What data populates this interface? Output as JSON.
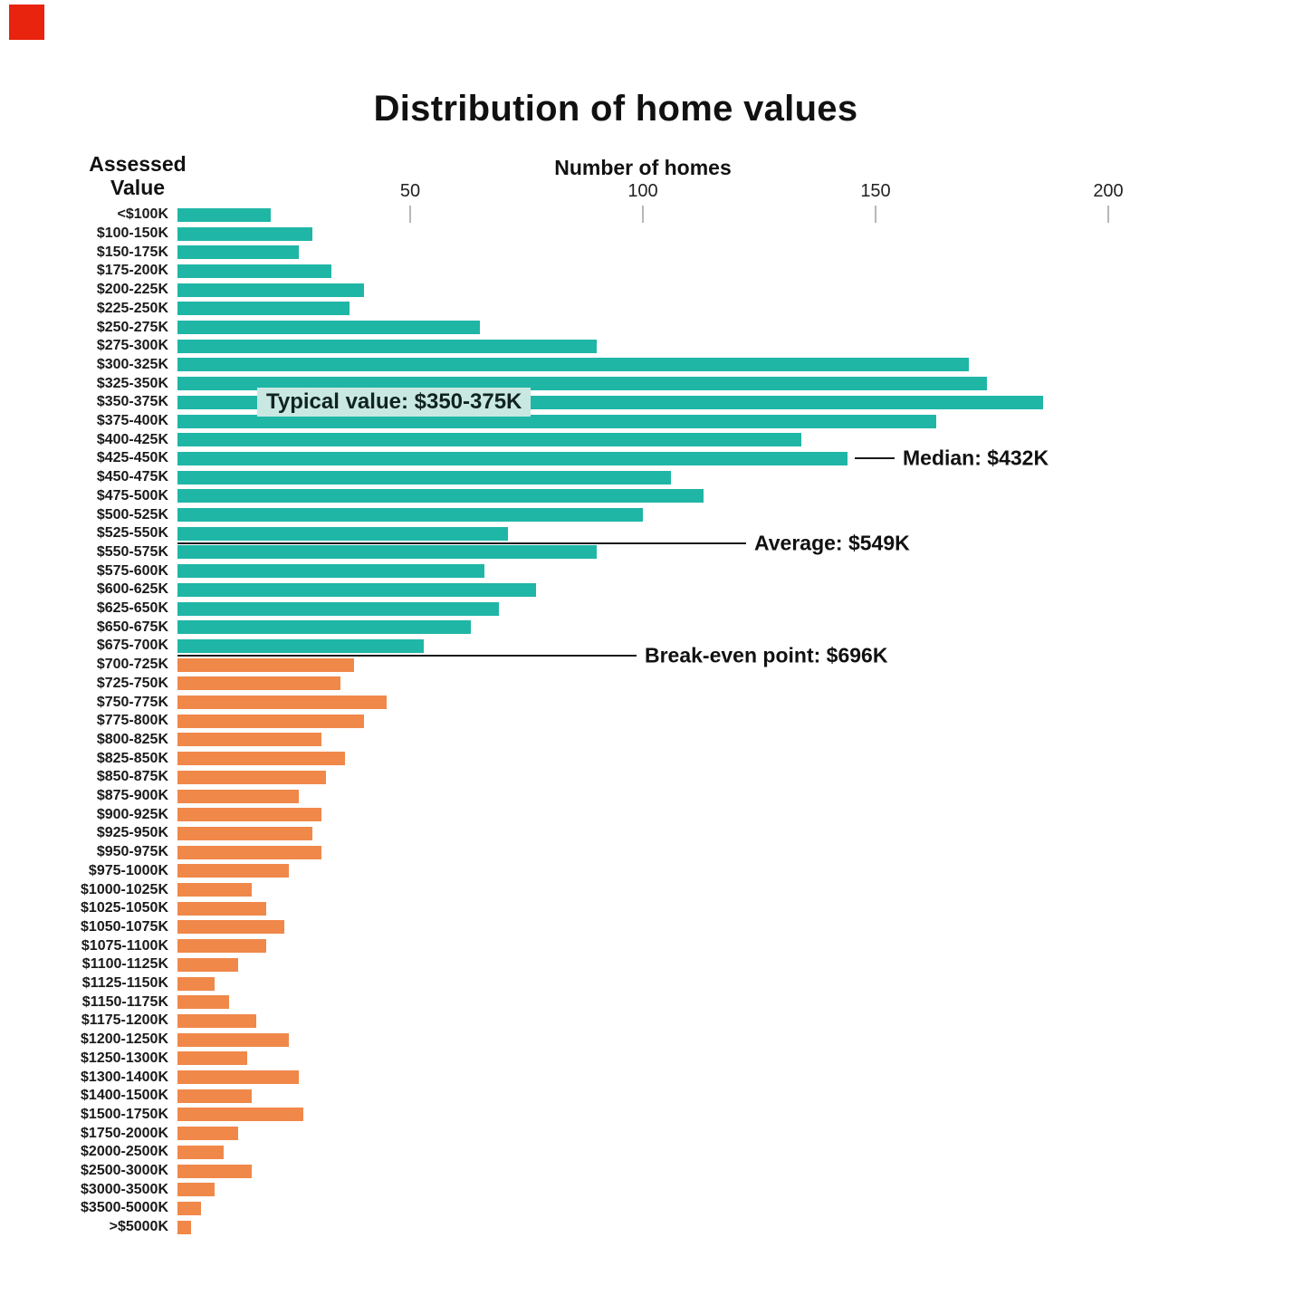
{
  "decorations": {
    "corner_square_color": "#e8230e"
  },
  "chart_data": {
    "type": "bar",
    "orientation": "horizontal",
    "title": "Distribution of home values",
    "xlabel": "Number of homes",
    "ylabel": "Assessed Value",
    "ylabel_lines": [
      "Assessed",
      "Value"
    ],
    "xlim": [
      0,
      200
    ],
    "x_ticks": [
      50,
      100,
      150,
      200
    ],
    "grid": false,
    "legend": null,
    "categories": [
      "<$100K",
      "$100-150K",
      "$150-175K",
      "$175-200K",
      "$200-225K",
      "$225-250K",
      "$250-275K",
      "$275-300K",
      "$300-325K",
      "$325-350K",
      "$350-375K",
      "$375-400K",
      "$400-425K",
      "$425-450K",
      "$450-475K",
      "$475-500K",
      "$500-525K",
      "$525-550K",
      "$550-575K",
      "$575-600K",
      "$600-625K",
      "$625-650K",
      "$650-675K",
      "$675-700K",
      "$700-725K",
      "$725-750K",
      "$750-775K",
      "$775-800K",
      "$800-825K",
      "$825-850K",
      "$850-875K",
      "$875-900K",
      "$900-925K",
      "$925-950K",
      "$950-975K",
      "$975-1000K",
      "$1000-1025K",
      "$1025-1050K",
      "$1050-1075K",
      "$1075-1100K",
      "$1100-1125K",
      "$1125-1150K",
      "$1150-1175K",
      "$1175-1200K",
      "$1200-1250K",
      "$1250-1300K",
      "$1300-1400K",
      "$1400-1500K",
      "$1500-1750K",
      "$1750-2000K",
      "$2000-2500K",
      "$2500-3000K",
      "$3000-3500K",
      "$3500-5000K",
      ">$5000K"
    ],
    "values": [
      20,
      29,
      26,
      33,
      40,
      37,
      65,
      90,
      170,
      174,
      186,
      163,
      134,
      144,
      106,
      113,
      100,
      71,
      90,
      66,
      77,
      69,
      63,
      53,
      38,
      35,
      45,
      40,
      31,
      36,
      32,
      26,
      31,
      29,
      31,
      24,
      16,
      19,
      23,
      19,
      13,
      8,
      11,
      17,
      24,
      15,
      26,
      16,
      27,
      13,
      10,
      16,
      8,
      5,
      3
    ],
    "colors": {
      "teal": "#1fb6a6",
      "orange": "#f0884a",
      "highlight": "#c9e8e2"
    },
    "color_split_category": "$700-725K",
    "annotations": [
      {
        "name": "typical-value",
        "text": "Typical value: $350-375K",
        "category": "$350-375K",
        "style": "highlight"
      },
      {
        "name": "median",
        "text": "Median: $432K",
        "category": "$425-450K",
        "style": "leader-line"
      },
      {
        "name": "average",
        "text": "Average: $549K",
        "category": "$525-550K",
        "style": "rule-line"
      },
      {
        "name": "break-even",
        "text": "Break-even point: $696K",
        "category": "$675-700K",
        "style": "rule-line"
      }
    ]
  }
}
